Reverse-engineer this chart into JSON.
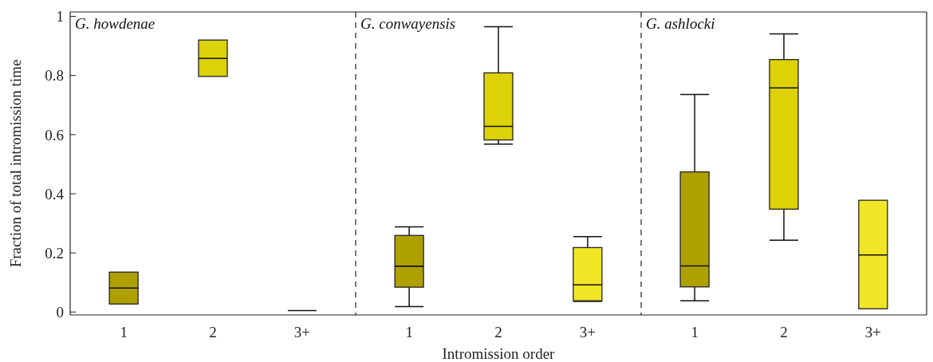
{
  "chart_data": [
    {
      "type": "box",
      "title": "G. howdenae",
      "ylabel": "Fraction of total intromission time",
      "categories": [
        "1",
        "2",
        "3+"
      ],
      "boxes": [
        {
          "low": 0.027,
          "q1": 0.027,
          "median": 0.081,
          "q3": 0.135,
          "high": 0.135
        },
        {
          "low": 0.797,
          "q1": 0.797,
          "median": 0.858,
          "q3": 0.92,
          "high": 0.92
        },
        {
          "low": 0.005,
          "q1": 0.005,
          "median": 0.005,
          "q3": 0.005,
          "high": 0.005
        }
      ],
      "colors": [
        "#ada000",
        "#dcd207",
        "#111111"
      ],
      "ylim": [
        -0.01,
        1.015
      ],
      "yticks": [
        0,
        0.2,
        0.4,
        0.6,
        0.8,
        1
      ],
      "grid": false
    },
    {
      "type": "box",
      "title": "G. conwayensis",
      "xlabel": "Intromission order",
      "categories": [
        "1",
        "2",
        "3+"
      ],
      "boxes": [
        {
          "low": 0.018,
          "q1": 0.084,
          "median": 0.155,
          "q3": 0.259,
          "high": 0.288
        },
        {
          "low": 0.568,
          "q1": 0.582,
          "median": 0.628,
          "q3": 0.809,
          "high": 0.965
        },
        {
          "low": 0.036,
          "q1": 0.038,
          "median": 0.092,
          "q3": 0.218,
          "high": 0.255
        }
      ],
      "colors": [
        "#ada000",
        "#dcd207",
        "#f0e626"
      ],
      "ylim": [
        -0.01,
        1.015
      ],
      "tick_labels": "x",
      "grid": false
    },
    {
      "type": "box",
      "title": "G. ashlocki",
      "categories": [
        "1",
        "2",
        "3+"
      ],
      "boxes": [
        {
          "low": 0.038,
          "q1": 0.085,
          "median": 0.156,
          "q3": 0.474,
          "high": 0.736
        },
        {
          "low": 0.243,
          "q1": 0.348,
          "median": 0.758,
          "q3": 0.854,
          "high": 0.941
        },
        {
          "low": 0.011,
          "q1": 0.011,
          "median": 0.193,
          "q3": 0.378,
          "high": 0.378
        }
      ],
      "colors": [
        "#ada000",
        "#dcd207",
        "#f0e626"
      ],
      "ylim": [
        -0.01,
        1.015
      ],
      "tick_labels": "x",
      "grid": false
    }
  ]
}
